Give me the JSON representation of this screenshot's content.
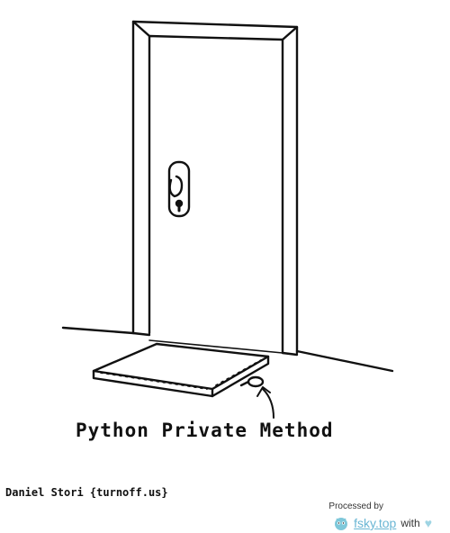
{
  "comic": {
    "caption": "Python Private Method",
    "signature": "Daniel Stori {turnoff.us}"
  },
  "watermark": {
    "label": "Processed by",
    "brand": "fsky.top",
    "with_text": "with",
    "heart": "♥",
    "logo_icon": "fsky-logo-icon",
    "brand_color": "#6ab6d4"
  }
}
